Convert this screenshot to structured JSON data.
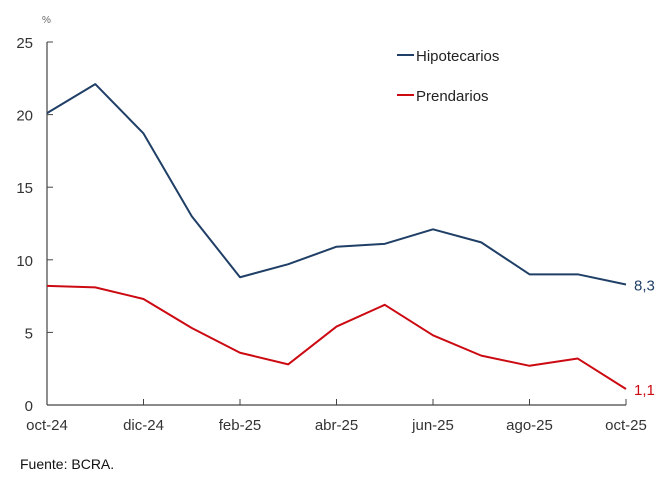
{
  "chart_data": {
    "type": "line",
    "unit_label": "%",
    "categories": [
      "oct-24",
      "nov-24",
      "dic-24",
      "ene-25",
      "feb-25",
      "mar-25",
      "abr-25",
      "may-25",
      "jun-25",
      "jul-25",
      "ago-25",
      "sep-25",
      "oct-25"
    ],
    "x_tick_labels": [
      "oct-24",
      "dic-24",
      "feb-25",
      "abr-25",
      "jun-25",
      "ago-25",
      "oct-25"
    ],
    "ylim": [
      0,
      25
    ],
    "y_ticks": [
      "0",
      "5",
      "10",
      "15",
      "20",
      "25"
    ],
    "grid": false,
    "legend_position": "top-right",
    "series": [
      {
        "name": "Hipotecarios",
        "color": "#1f3f66",
        "values": [
          20.1,
          22.1,
          18.7,
          13.0,
          8.8,
          9.7,
          10.9,
          11.1,
          12.1,
          11.2,
          9.0,
          9.0,
          8.3
        ],
        "end_label": "8,3"
      },
      {
        "name": "Prendarios",
        "color": "#cc0a12",
        "values": [
          8.2,
          8.1,
          7.3,
          5.3,
          3.6,
          2.8,
          5.4,
          6.9,
          4.8,
          3.4,
          2.7,
          3.2,
          1.1
        ],
        "end_label": "1,1"
      }
    ]
  },
  "source": "Fuente: BCRA."
}
